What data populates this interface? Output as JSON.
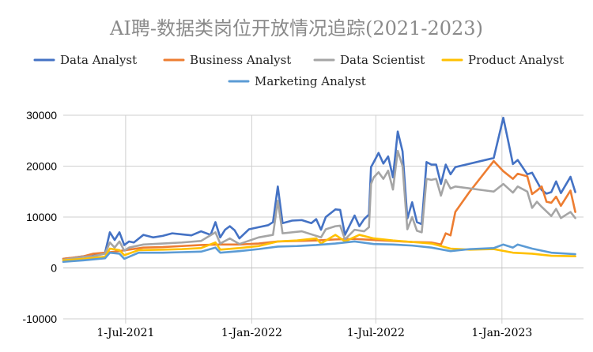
{
  "chart_data": {
    "type": "line",
    "title": "AI聘-数据类岗位开放情况追踪(2021-2023)",
    "xlabel": "",
    "ylabel": "",
    "xlim": [
      "2021-04-01",
      "2023-04-30"
    ],
    "ylim": [
      -10000,
      30000
    ],
    "yticks": [
      -10000,
      0,
      10000,
      20000,
      30000
    ],
    "xticks": [
      {
        "date": "2021-07-01",
        "label": "1-Jul-2021"
      },
      {
        "date": "2022-01-01",
        "label": "1-Jan-2022"
      },
      {
        "date": "2022-07-01",
        "label": "1-Jul-2022"
      },
      {
        "date": "2023-01-01",
        "label": "1-Jan-2023"
      }
    ],
    "grid": true,
    "legend_position": "top",
    "series": [
      {
        "name": "Data Analyst",
        "color": "#4472C4",
        "points": [
          [
            "2021-04-01",
            1800
          ],
          [
            "2021-04-15",
            2000
          ],
          [
            "2021-05-01",
            2300
          ],
          [
            "2021-05-15",
            2400
          ],
          [
            "2021-06-01",
            3000
          ],
          [
            "2021-06-08",
            7000
          ],
          [
            "2021-06-15",
            5500
          ],
          [
            "2021-06-22",
            7000
          ],
          [
            "2021-06-29",
            4500
          ],
          [
            "2021-07-06",
            5200
          ],
          [
            "2021-07-13",
            5000
          ],
          [
            "2021-07-27",
            6500
          ],
          [
            "2021-08-10",
            6000
          ],
          [
            "2021-08-24",
            6300
          ],
          [
            "2021-09-07",
            6800
          ],
          [
            "2021-09-21",
            6600
          ],
          [
            "2021-10-05",
            6400
          ],
          [
            "2021-10-19",
            7200
          ],
          [
            "2021-11-02",
            6500
          ],
          [
            "2021-11-09",
            9000
          ],
          [
            "2021-11-16",
            6000
          ],
          [
            "2021-11-23",
            7500
          ],
          [
            "2021-11-30",
            8200
          ],
          [
            "2021-12-07",
            7400
          ],
          [
            "2021-12-14",
            5800
          ],
          [
            "2021-12-28",
            7600
          ],
          [
            "2022-01-11",
            8000
          ],
          [
            "2022-01-25",
            8400
          ],
          [
            "2022-02-01",
            9000
          ],
          [
            "2022-02-08",
            16000
          ],
          [
            "2022-02-15",
            8800
          ],
          [
            "2022-03-01",
            9300
          ],
          [
            "2022-03-15",
            9400
          ],
          [
            "2022-03-29",
            8800
          ],
          [
            "2022-04-05",
            9600
          ],
          [
            "2022-04-12",
            7500
          ],
          [
            "2022-04-19",
            10000
          ],
          [
            "2022-05-03",
            11500
          ],
          [
            "2022-05-10",
            11400
          ],
          [
            "2022-05-17",
            6500
          ],
          [
            "2022-05-31",
            10300
          ],
          [
            "2022-06-07",
            8200
          ],
          [
            "2022-06-14",
            9600
          ],
          [
            "2022-06-21",
            10500
          ],
          [
            "2022-06-24",
            19800
          ],
          [
            "2022-06-28",
            20800
          ],
          [
            "2022-07-05",
            22600
          ],
          [
            "2022-07-12",
            20500
          ],
          [
            "2022-07-19",
            21900
          ],
          [
            "2022-07-26",
            17800
          ],
          [
            "2022-08-02",
            26800
          ],
          [
            "2022-08-09",
            22900
          ],
          [
            "2022-08-16",
            9700
          ],
          [
            "2022-08-23",
            12900
          ],
          [
            "2022-08-30",
            9000
          ],
          [
            "2022-09-06",
            8600
          ],
          [
            "2022-09-13",
            20800
          ],
          [
            "2022-09-20",
            20300
          ],
          [
            "2022-09-27",
            20300
          ],
          [
            "2022-10-04",
            16500
          ],
          [
            "2022-10-11",
            20300
          ],
          [
            "2022-10-18",
            18400
          ],
          [
            "2022-10-25",
            19800
          ],
          [
            "2022-12-20",
            21600
          ],
          [
            "2023-01-03",
            29500
          ],
          [
            "2023-01-10",
            25000
          ],
          [
            "2023-01-17",
            20400
          ],
          [
            "2023-01-24",
            21200
          ],
          [
            "2023-02-07",
            18400
          ],
          [
            "2023-02-14",
            18700
          ],
          [
            "2023-02-21",
            17000
          ],
          [
            "2023-02-28",
            15300
          ],
          [
            "2023-03-07",
            14600
          ],
          [
            "2023-03-14",
            14900
          ],
          [
            "2023-03-21",
            17000
          ],
          [
            "2023-03-28",
            14700
          ],
          [
            "2023-04-11",
            17900
          ],
          [
            "2023-04-18",
            14900
          ]
        ]
      },
      {
        "name": "Business Analyst",
        "color": "#ED7D31",
        "points": [
          [
            "2021-04-01",
            1800
          ],
          [
            "2021-04-15",
            2000
          ],
          [
            "2021-05-01",
            2300
          ],
          [
            "2021-05-15",
            2800
          ],
          [
            "2021-06-01",
            3000
          ],
          [
            "2021-06-15",
            3200
          ],
          [
            "2021-07-06",
            3600
          ],
          [
            "2021-07-27",
            4000
          ],
          [
            "2021-08-24",
            4100
          ],
          [
            "2021-09-21",
            4300
          ],
          [
            "2021-10-19",
            4500
          ],
          [
            "2021-11-16",
            4600
          ],
          [
            "2021-12-14",
            4600
          ],
          [
            "2022-01-11",
            4800
          ],
          [
            "2022-02-08",
            5200
          ],
          [
            "2022-03-08",
            5300
          ],
          [
            "2022-04-05",
            5400
          ],
          [
            "2022-05-03",
            5600
          ],
          [
            "2022-05-31",
            5700
          ],
          [
            "2022-06-28",
            5500
          ],
          [
            "2022-07-26",
            5300
          ],
          [
            "2022-08-23",
            5100
          ],
          [
            "2022-09-20",
            5000
          ],
          [
            "2022-10-04",
            4600
          ],
          [
            "2022-10-11",
            6800
          ],
          [
            "2022-10-18",
            6400
          ],
          [
            "2022-10-25",
            11000
          ],
          [
            "2022-11-15",
            15000
          ],
          [
            "2022-12-20",
            21000
          ],
          [
            "2023-01-03",
            19000
          ],
          [
            "2023-01-17",
            17500
          ],
          [
            "2023-01-24",
            18500
          ],
          [
            "2023-02-07",
            18000
          ],
          [
            "2023-02-14",
            14500
          ],
          [
            "2023-02-21",
            15200
          ],
          [
            "2023-02-28",
            16000
          ],
          [
            "2023-03-07",
            13000
          ],
          [
            "2023-03-14",
            12800
          ],
          [
            "2023-03-21",
            14000
          ],
          [
            "2023-03-28",
            12200
          ],
          [
            "2023-04-11",
            15200
          ],
          [
            "2023-04-18",
            11000
          ]
        ]
      },
      {
        "name": "Data Scientist",
        "color": "#A5A5A5",
        "points": [
          [
            "2021-04-01",
            1600
          ],
          [
            "2021-04-15",
            1900
          ],
          [
            "2021-05-01",
            2200
          ],
          [
            "2021-05-15",
            2300
          ],
          [
            "2021-06-01",
            2800
          ],
          [
            "2021-06-08",
            5000
          ],
          [
            "2021-06-15",
            4000
          ],
          [
            "2021-06-22",
            5200
          ],
          [
            "2021-06-29",
            3400
          ],
          [
            "2021-07-06",
            4000
          ],
          [
            "2021-07-27",
            4600
          ],
          [
            "2021-08-24",
            4800
          ],
          [
            "2021-09-21",
            5000
          ],
          [
            "2021-10-19",
            5300
          ],
          [
            "2021-11-09",
            7000
          ],
          [
            "2021-11-16",
            4800
          ],
          [
            "2021-11-30",
            5800
          ],
          [
            "2021-12-14",
            4700
          ],
          [
            "2022-01-11",
            6000
          ],
          [
            "2022-02-01",
            6500
          ],
          [
            "2022-02-08",
            13200
          ],
          [
            "2022-02-15",
            6800
          ],
          [
            "2022-03-15",
            7200
          ],
          [
            "2022-04-12",
            6000
          ],
          [
            "2022-04-19",
            7600
          ],
          [
            "2022-05-03",
            8200
          ],
          [
            "2022-05-10",
            8300
          ],
          [
            "2022-05-17",
            5600
          ],
          [
            "2022-05-31",
            7500
          ],
          [
            "2022-06-14",
            7200
          ],
          [
            "2022-06-21",
            8000
          ],
          [
            "2022-06-24",
            16500
          ],
          [
            "2022-06-28",
            17800
          ],
          [
            "2022-07-05",
            18800
          ],
          [
            "2022-07-12",
            17500
          ],
          [
            "2022-07-19",
            19100
          ],
          [
            "2022-07-26",
            15400
          ],
          [
            "2022-08-02",
            23000
          ],
          [
            "2022-08-09",
            20000
          ],
          [
            "2022-08-16",
            7600
          ],
          [
            "2022-08-23",
            10000
          ],
          [
            "2022-08-30",
            7300
          ],
          [
            "2022-09-06",
            7000
          ],
          [
            "2022-09-13",
            17500
          ],
          [
            "2022-09-20",
            17300
          ],
          [
            "2022-09-27",
            17500
          ],
          [
            "2022-10-04",
            14200
          ],
          [
            "2022-10-11",
            17300
          ],
          [
            "2022-10-18",
            15600
          ],
          [
            "2022-10-25",
            16000
          ],
          [
            "2022-12-20",
            15000
          ],
          [
            "2023-01-03",
            16500
          ],
          [
            "2023-01-17",
            14800
          ],
          [
            "2023-01-24",
            16000
          ],
          [
            "2023-02-07",
            15000
          ],
          [
            "2023-02-14",
            11800
          ],
          [
            "2023-02-21",
            13000
          ],
          [
            "2023-02-28",
            12000
          ],
          [
            "2023-03-14",
            10200
          ],
          [
            "2023-03-21",
            11600
          ],
          [
            "2023-03-28",
            9800
          ],
          [
            "2023-04-11",
            11000
          ],
          [
            "2023-04-18",
            9800
          ]
        ]
      },
      {
        "name": "Product Analyst",
        "color": "#FFC000",
        "points": [
          [
            "2021-04-01",
            1500
          ],
          [
            "2021-05-01",
            1800
          ],
          [
            "2021-06-01",
            2200
          ],
          [
            "2021-06-08",
            3800
          ],
          [
            "2021-06-22",
            3500
          ],
          [
            "2021-06-29",
            2500
          ],
          [
            "2021-07-20",
            3500
          ],
          [
            "2021-08-24",
            3600
          ],
          [
            "2021-09-21",
            3700
          ],
          [
            "2021-10-19",
            3900
          ],
          [
            "2021-11-09",
            5000
          ],
          [
            "2021-11-16",
            3600
          ],
          [
            "2021-12-14",
            3900
          ],
          [
            "2022-01-11",
            4300
          ],
          [
            "2022-02-08",
            5200
          ],
          [
            "2022-03-08",
            5400
          ],
          [
            "2022-04-05",
            5800
          ],
          [
            "2022-04-12",
            4800
          ],
          [
            "2022-05-03",
            6500
          ],
          [
            "2022-05-17",
            5200
          ],
          [
            "2022-06-07",
            6500
          ],
          [
            "2022-06-28",
            5800
          ],
          [
            "2022-07-26",
            5400
          ],
          [
            "2022-08-23",
            5100
          ],
          [
            "2022-09-20",
            4800
          ],
          [
            "2022-10-18",
            3800
          ],
          [
            "2022-11-15",
            3600
          ],
          [
            "2022-12-20",
            3700
          ],
          [
            "2023-01-17",
            3000
          ],
          [
            "2023-02-14",
            2800
          ],
          [
            "2023-03-14",
            2400
          ],
          [
            "2023-04-18",
            2300
          ]
        ]
      },
      {
        "name": "Marketing Analyst",
        "color": "#5B9BD5",
        "points": [
          [
            "2021-04-01",
            1200
          ],
          [
            "2021-05-01",
            1500
          ],
          [
            "2021-06-01",
            1900
          ],
          [
            "2021-06-08",
            3000
          ],
          [
            "2021-06-22",
            2800
          ],
          [
            "2021-06-29",
            1800
          ],
          [
            "2021-07-20",
            3000
          ],
          [
            "2021-08-24",
            3000
          ],
          [
            "2021-09-21",
            3100
          ],
          [
            "2021-10-19",
            3200
          ],
          [
            "2021-11-09",
            4000
          ],
          [
            "2021-11-16",
            3000
          ],
          [
            "2021-12-14",
            3300
          ],
          [
            "2022-01-11",
            3700
          ],
          [
            "2022-02-08",
            4200
          ],
          [
            "2022-03-08",
            4300
          ],
          [
            "2022-04-05",
            4500
          ],
          [
            "2022-05-03",
            4800
          ],
          [
            "2022-05-31",
            5200
          ],
          [
            "2022-06-28",
            4700
          ],
          [
            "2022-07-26",
            4600
          ],
          [
            "2022-08-23",
            4400
          ],
          [
            "2022-09-20",
            4000
          ],
          [
            "2022-10-18",
            3300
          ],
          [
            "2022-11-15",
            3700
          ],
          [
            "2022-12-20",
            3900
          ],
          [
            "2023-01-03",
            4600
          ],
          [
            "2023-01-17",
            4000
          ],
          [
            "2023-01-24",
            4600
          ],
          [
            "2023-02-14",
            3800
          ],
          [
            "2023-03-14",
            3000
          ],
          [
            "2023-04-18",
            2700
          ]
        ]
      }
    ]
  }
}
